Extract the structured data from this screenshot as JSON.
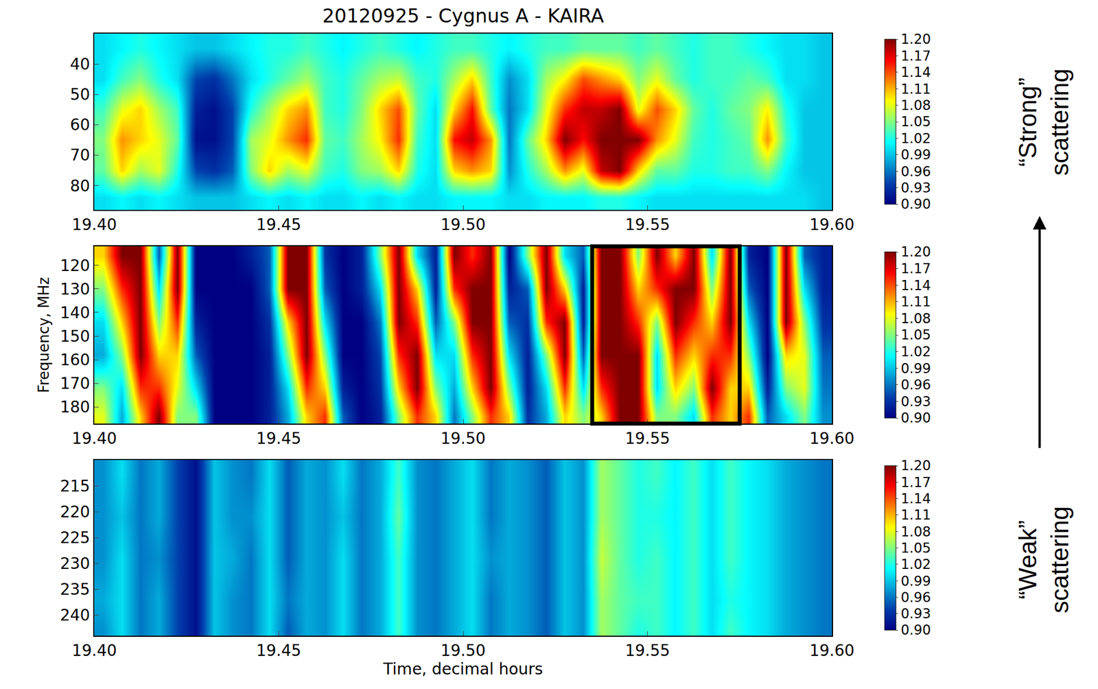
{
  "chart_data": [
    {
      "type": "heatmap",
      "title": "20120925 - Cygnus A - KAIRA",
      "color": "Jet",
      "annotation": "“Strong” scattering",
      "x": [
        19.4025,
        19.4075,
        19.4125,
        19.4175,
        19.4225,
        19.4275,
        19.4325,
        19.4375,
        19.4425,
        19.4475,
        19.4525,
        19.4575,
        19.4625,
        19.4675,
        19.4725,
        19.4775,
        19.4825,
        19.4875,
        19.4925,
        19.4975,
        19.5025,
        19.5075,
        19.5125,
        19.5175,
        19.5225,
        19.5275,
        19.5325,
        19.5375,
        19.5425,
        19.5475,
        19.5525,
        19.5575,
        19.5625,
        19.5675,
        19.5725,
        19.5775,
        19.5825,
        19.5875,
        19.5925,
        19.5975
      ],
      "y": [
        35,
        45,
        55,
        65,
        75,
        84
      ],
      "z": [
        [
          1.0,
          1.01,
          1.02,
          1.01,
          1.0,
          0.99,
          0.99,
          1.0,
          1.01,
          1.02,
          1.02,
          1.03,
          1.02,
          1.01,
          1.02,
          1.03,
          1.02,
          1.01,
          1.02,
          1.03,
          1.03,
          1.02,
          1.01,
          1.02,
          1.03,
          1.03,
          1.04,
          1.04,
          1.04,
          1.03,
          1.04,
          1.03,
          1.02,
          1.03,
          1.03,
          1.02,
          1.01,
          1.0,
          1.0,
          0.99
        ],
        [
          1.0,
          1.03,
          1.05,
          1.02,
          1.0,
          0.94,
          0.93,
          0.96,
          1.0,
          1.02,
          1.04,
          1.06,
          1.03,
          1.02,
          1.04,
          1.06,
          1.07,
          1.03,
          1.02,
          1.06,
          1.1,
          1.03,
          0.97,
          1.0,
          1.06,
          1.09,
          1.14,
          1.12,
          1.1,
          1.05,
          1.08,
          1.04,
          1.02,
          1.03,
          1.03,
          1.04,
          1.03,
          1.0,
          1.0,
          0.99
        ],
        [
          1.03,
          1.08,
          1.1,
          1.06,
          1.03,
          0.92,
          0.91,
          0.94,
          1.02,
          1.06,
          1.1,
          1.12,
          1.03,
          1.02,
          1.05,
          1.1,
          1.14,
          1.04,
          1.0,
          1.1,
          1.16,
          1.04,
          0.96,
          1.0,
          1.08,
          1.15,
          1.18,
          1.18,
          1.2,
          1.08,
          1.14,
          1.1,
          1.04,
          1.02,
          1.04,
          1.05,
          1.09,
          1.02,
          0.99,
          0.99
        ],
        [
          1.05,
          1.12,
          1.1,
          1.08,
          1.04,
          0.91,
          0.91,
          0.94,
          1.06,
          1.08,
          1.12,
          1.15,
          1.04,
          1.03,
          1.06,
          1.09,
          1.15,
          1.03,
          1.0,
          1.16,
          1.18,
          1.12,
          0.96,
          1.04,
          1.1,
          1.2,
          1.16,
          1.2,
          1.2,
          1.2,
          1.12,
          1.08,
          1.03,
          1.02,
          1.03,
          1.04,
          1.12,
          1.03,
          0.99,
          0.99
        ],
        [
          1.04,
          1.1,
          1.06,
          1.08,
          1.02,
          0.94,
          0.93,
          0.95,
          1.05,
          1.1,
          1.06,
          1.08,
          1.03,
          1.02,
          1.05,
          1.06,
          1.1,
          1.02,
          1.0,
          1.1,
          1.12,
          1.1,
          0.97,
          1.02,
          1.06,
          1.12,
          1.08,
          1.18,
          1.2,
          1.1,
          1.04,
          1.04,
          1.02,
          1.02,
          1.03,
          1.03,
          1.05,
          1.01,
          0.99,
          0.99
        ],
        [
          1.0,
          1.01,
          1.0,
          1.01,
          1.0,
          0.99,
          0.99,
          0.99,
          1.0,
          1.01,
          1.0,
          1.01,
          1.0,
          1.0,
          1.01,
          1.0,
          1.01,
          1.0,
          1.0,
          1.01,
          1.01,
          1.01,
          1.0,
          1.0,
          1.01,
          1.01,
          1.01,
          1.02,
          1.02,
          1.01,
          1.0,
          1.0,
          1.0,
          1.0,
          1.0,
          1.0,
          1.0,
          1.0,
          1.0,
          0.99
        ]
      ],
      "xlim": [
        19.4,
        19.6
      ],
      "xticks": [
        {
          "value": 19.4,
          "label": "19.40"
        },
        19.45,
        {
          "value": 19.5,
          "label": "19.50"
        },
        19.55,
        {
          "value": 19.6,
          "label": "19.60"
        }
      ],
      "ylim": [
        88,
        30
      ],
      "yticks": [
        40,
        50,
        60,
        70,
        80
      ],
      "colorbar_range": [
        0.9,
        1.2
      ],
      "colorbar_ticks": [
        {
          "value": 0.9,
          "label": "0.90"
        },
        0.93,
        0.96,
        0.99,
        1.02,
        1.05,
        1.08,
        1.11,
        1.14,
        1.17,
        {
          "value": 1.2,
          "label": "1.20"
        }
      ]
    },
    {
      "type": "heatmap",
      "ylabel": "Frequency, MHz",
      "color": "Jet",
      "box": [
        19.535,
        19.575
      ],
      "x": [
        19.4025,
        19.4075,
        19.4125,
        19.4175,
        19.4225,
        19.4275,
        19.4325,
        19.4375,
        19.4425,
        19.4475,
        19.4525,
        19.4575,
        19.4625,
        19.4675,
        19.4725,
        19.4775,
        19.4825,
        19.4875,
        19.4925,
        19.4975,
        19.5025,
        19.5075,
        19.5125,
        19.5175,
        19.5225,
        19.5275,
        19.5325,
        19.5375,
        19.5425,
        19.5475,
        19.5525,
        19.5575,
        19.5625,
        19.5675,
        19.5725,
        19.5775,
        19.5825,
        19.5875,
        19.5925,
        19.5975
      ],
      "y": [
        116,
        130,
        144,
        158,
        172,
        184
      ],
      "z": [
        [
          1.1,
          1.2,
          1.2,
          0.95,
          1.2,
          0.9,
          0.9,
          0.9,
          0.92,
          0.95,
          1.2,
          1.2,
          0.93,
          0.9,
          0.92,
          1.05,
          1.2,
          1.0,
          0.92,
          1.2,
          1.15,
          1.2,
          0.9,
          1.05,
          1.2,
          1.0,
          0.95,
          1.2,
          1.2,
          1.05,
          1.2,
          1.1,
          1.2,
          1.0,
          1.2,
          0.92,
          0.9,
          1.2,
          0.95,
          0.92
        ],
        [
          1.05,
          1.15,
          1.2,
          1.0,
          1.2,
          0.9,
          0.9,
          0.9,
          0.9,
          0.95,
          1.2,
          1.2,
          0.95,
          0.9,
          0.92,
          1.0,
          1.2,
          1.1,
          0.92,
          1.15,
          1.2,
          1.2,
          0.92,
          0.95,
          1.2,
          1.1,
          0.92,
          1.2,
          1.2,
          1.1,
          1.15,
          1.2,
          1.2,
          1.05,
          1.2,
          0.95,
          0.9,
          1.2,
          1.0,
          0.92
        ],
        [
          1.0,
          1.1,
          1.2,
          1.05,
          1.15,
          0.92,
          0.9,
          0.9,
          0.9,
          0.93,
          1.1,
          1.2,
          1.0,
          0.9,
          0.9,
          0.96,
          1.2,
          1.15,
          0.95,
          1.05,
          1.2,
          1.2,
          0.95,
          0.93,
          1.15,
          1.2,
          0.92,
          1.2,
          1.2,
          1.15,
          1.05,
          1.2,
          1.15,
          1.1,
          1.2,
          1.0,
          0.9,
          1.2,
          1.05,
          0.93
        ],
        [
          0.98,
          1.05,
          1.2,
          1.1,
          1.1,
          0.95,
          0.9,
          0.9,
          0.9,
          0.92,
          1.05,
          1.2,
          1.05,
          0.9,
          0.9,
          0.94,
          1.15,
          1.2,
          1.0,
          1.0,
          1.15,
          1.2,
          1.0,
          0.92,
          1.05,
          1.2,
          0.95,
          1.2,
          1.2,
          1.2,
          1.0,
          1.15,
          1.1,
          1.15,
          1.15,
          1.05,
          0.9,
          1.1,
          1.08,
          0.95
        ],
        [
          1.05,
          1.0,
          1.15,
          1.15,
          1.08,
          1.0,
          0.9,
          0.9,
          0.9,
          0.92,
          1.0,
          1.15,
          1.1,
          0.92,
          0.9,
          0.93,
          1.1,
          1.2,
          1.05,
          0.98,
          1.1,
          1.2,
          1.05,
          0.92,
          1.0,
          1.15,
          1.0,
          1.15,
          1.2,
          1.2,
          1.0,
          1.1,
          1.05,
          1.2,
          1.1,
          1.1,
          0.92,
          1.05,
          1.08,
          0.96
        ],
        [
          1.08,
          0.98,
          1.1,
          1.2,
          1.05,
          1.05,
          0.9,
          0.9,
          0.9,
          0.92,
          0.98,
          1.1,
          1.15,
          0.95,
          0.9,
          0.92,
          1.05,
          1.15,
          1.1,
          0.96,
          1.05,
          1.15,
          1.1,
          0.93,
          0.98,
          1.1,
          1.05,
          1.1,
          1.2,
          1.2,
          1.05,
          1.05,
          1.0,
          1.15,
          1.1,
          1.15,
          0.95,
          1.0,
          1.05,
          0.97
        ]
      ],
      "xlim": [
        19.4,
        19.6
      ],
      "xticks": [
        {
          "value": 19.4,
          "label": "19.40"
        },
        19.45,
        {
          "value": 19.5,
          "label": "19.50"
        },
        19.55,
        {
          "value": 19.6,
          "label": "19.60"
        }
      ],
      "ylim": [
        187,
        112
      ],
      "yticks": [
        120,
        130,
        140,
        150,
        160,
        170,
        180
      ],
      "colorbar_range": [
        0.9,
        1.2
      ],
      "colorbar_ticks": [
        {
          "value": 0.9,
          "label": "0.90"
        },
        0.93,
        0.96,
        0.99,
        1.02,
        1.05,
        1.08,
        1.11,
        1.14,
        1.17,
        {
          "value": 1.2,
          "label": "1.20"
        }
      ]
    },
    {
      "type": "heatmap",
      "xlabel": "Time, decimal hours",
      "color": "Jet",
      "annotation": "“Weak” scattering",
      "x": [
        19.4025,
        19.4075,
        19.4125,
        19.4175,
        19.4225,
        19.4275,
        19.4325,
        19.4375,
        19.4425,
        19.4475,
        19.4525,
        19.4575,
        19.4625,
        19.4675,
        19.4725,
        19.4775,
        19.4825,
        19.4875,
        19.4925,
        19.4975,
        19.5025,
        19.5075,
        19.5125,
        19.5175,
        19.5225,
        19.5275,
        19.5325,
        19.5375,
        19.5425,
        19.5475,
        19.5525,
        19.5575,
        19.5625,
        19.5675,
        19.5725,
        19.5775,
        19.5825,
        19.5875,
        19.5925,
        19.5975
      ],
      "y": [
        213,
        221,
        229,
        237,
        243
      ],
      "z": [
        [
          0.97,
          1.0,
          0.96,
          0.98,
          0.94,
          0.91,
          0.99,
          0.97,
          0.96,
          1.0,
          0.95,
          0.98,
          0.97,
          1.0,
          0.96,
          0.98,
          1.03,
          0.97,
          0.96,
          0.98,
          1.0,
          0.96,
          0.98,
          0.97,
          0.95,
          0.99,
          0.97,
          1.06,
          1.04,
          1.02,
          1.03,
          1.01,
          1.03,
          1.0,
          1.03,
          1.01,
          1.0,
          0.98,
          0.97,
          0.96
        ],
        [
          0.97,
          0.99,
          0.96,
          0.98,
          0.94,
          0.91,
          0.99,
          0.97,
          0.97,
          1.0,
          0.95,
          0.98,
          0.97,
          0.99,
          0.96,
          0.98,
          1.04,
          0.97,
          0.96,
          0.98,
          1.0,
          0.96,
          0.98,
          0.97,
          0.95,
          0.99,
          0.97,
          1.06,
          1.04,
          1.02,
          1.02,
          1.01,
          1.03,
          1.0,
          1.03,
          1.01,
          1.0,
          0.98,
          0.97,
          0.96
        ],
        [
          0.97,
          1.0,
          0.96,
          0.97,
          0.94,
          0.91,
          0.99,
          0.98,
          0.96,
          1.0,
          0.95,
          0.98,
          0.97,
          1.0,
          0.96,
          0.98,
          1.03,
          0.97,
          0.96,
          0.98,
          1.0,
          0.97,
          0.98,
          0.97,
          0.95,
          0.99,
          0.97,
          1.07,
          1.04,
          1.02,
          1.03,
          1.01,
          1.03,
          1.0,
          1.03,
          1.01,
          1.0,
          0.98,
          0.97,
          0.96
        ],
        [
          0.98,
          1.0,
          0.96,
          0.98,
          0.94,
          0.91,
          0.99,
          0.97,
          0.96,
          1.0,
          0.96,
          0.98,
          0.97,
          1.0,
          0.96,
          0.98,
          1.03,
          0.97,
          0.96,
          0.98,
          1.0,
          0.96,
          0.98,
          0.97,
          0.95,
          0.99,
          0.97,
          1.06,
          1.04,
          1.03,
          1.03,
          1.01,
          1.03,
          1.0,
          1.02,
          1.01,
          1.0,
          0.98,
          0.97,
          0.96
        ],
        [
          0.97,
          1.0,
          0.96,
          0.98,
          0.94,
          0.91,
          0.99,
          0.97,
          0.96,
          1.0,
          0.95,
          0.98,
          0.97,
          1.0,
          0.96,
          0.98,
          1.03,
          0.97,
          0.96,
          0.98,
          1.0,
          0.96,
          0.98,
          0.97,
          0.95,
          0.99,
          0.97,
          1.06,
          1.04,
          1.02,
          1.03,
          1.01,
          1.03,
          1.0,
          1.03,
          1.01,
          1.0,
          0.98,
          0.97,
          0.96
        ]
      ],
      "xlim": [
        19.4,
        19.6
      ],
      "xticks": [
        {
          "value": 19.4,
          "label": "19.40"
        },
        19.45,
        {
          "value": 19.5,
          "label": "19.50"
        },
        19.55,
        {
          "value": 19.6,
          "label": "19.60"
        }
      ],
      "ylim": [
        244,
        210
      ],
      "yticks": [
        215,
        220,
        225,
        230,
        235,
        240
      ],
      "colorbar_range": [
        0.9,
        1.2
      ],
      "colorbar_ticks": [
        {
          "value": 0.9,
          "label": "0.90"
        },
        0.93,
        0.96,
        0.99,
        1.02,
        1.05,
        1.08,
        1.11,
        1.14,
        1.17,
        {
          "value": 1.2,
          "label": "1.20"
        }
      ]
    }
  ]
}
